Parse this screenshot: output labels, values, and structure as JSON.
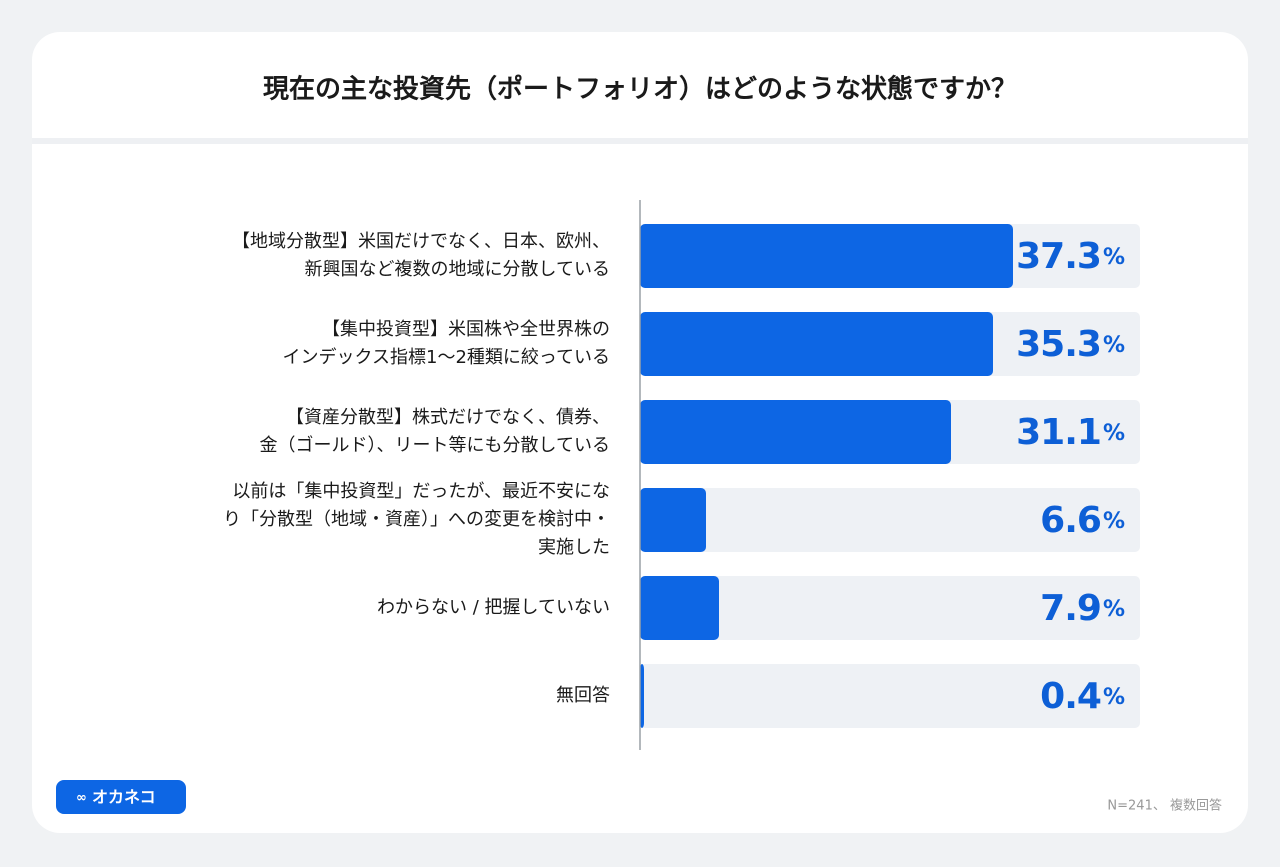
{
  "chart_data": {
    "type": "bar",
    "orientation": "horizontal",
    "title": "現在の主な投資先（ポートフォリオ）はどのような状態ですか？",
    "categories": [
      "【地域分散型】米国だけでなく、日本、欧州、\n新興国など複数の地域に分散している",
      "【集中投資型】米国株や全世界株の\nインデックス指標1〜2種類に絞っている",
      "【資産分散型】株式だけでなく、債券、\n金（ゴールド）、リート等にも分散している",
      "以前は「集中投資型」だったが、最近不安にな\nり「分散型（地域・資産）」への変更を検討中・\n実施した",
      "わからない / 把握していない",
      "無回答"
    ],
    "values": [
      37.3,
      35.3,
      31.1,
      6.6,
      7.9,
      0.4
    ],
    "value_labels": [
      "37.3%",
      "35.3%",
      "31.1%",
      "6.6%",
      "7.9%",
      "0.4%"
    ],
    "color": "#0d66e4",
    "xlim": [
      0,
      50
    ],
    "note": "N=241、 複数回答",
    "logo": "オカネコ"
  }
}
